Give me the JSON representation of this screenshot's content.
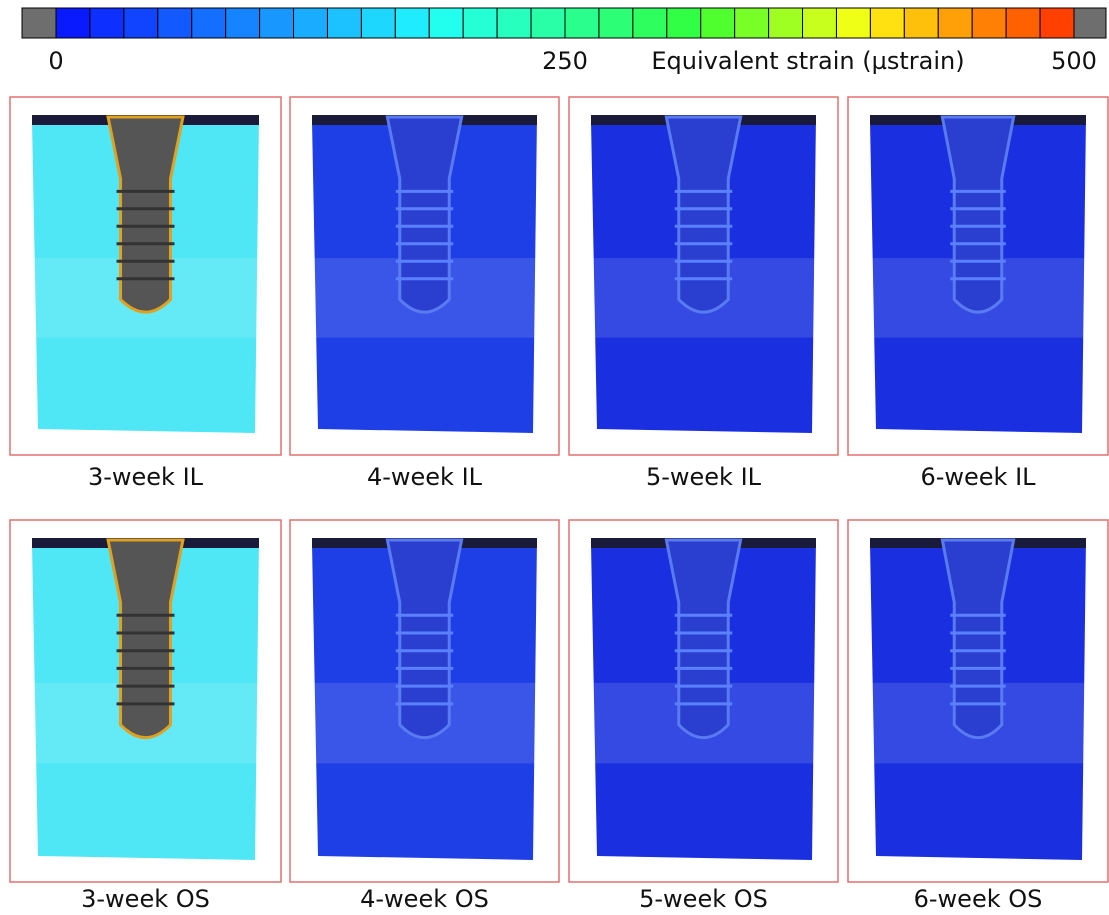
{
  "colorbar": {
    "label": "Equivalent strain (µstrain)",
    "lim": [
      0,
      500
    ],
    "ticks": [
      0,
      250,
      500
    ],
    "colors": [
      "#0a1aff",
      "#0d2fff",
      "#1044ff",
      "#1259ff",
      "#146eff",
      "#1683ff",
      "#1898ff",
      "#1aadff",
      "#1cc2ff",
      "#1ed7ff",
      "#20ecff",
      "#22ffee",
      "#24ffd6",
      "#26ffbe",
      "#28ffa6",
      "#2aff8e",
      "#2cff76",
      "#2eff5e",
      "#30ff46",
      "#50ff2e",
      "#78ff28",
      "#a0ff22",
      "#c8ff1c",
      "#f0ff16",
      "#ffe010",
      "#ffc00c",
      "#ffa008",
      "#ff8004",
      "#ff6000",
      "#ff4000"
    ],
    "out_of_range_color": "#6e6e6e"
  },
  "panels": [
    {
      "label": "3-week IL",
      "color": "#4fe6f5"
    },
    {
      "label": "4-week IL",
      "color": "#1f3fe6"
    },
    {
      "label": "5-week IL",
      "color": "#1a30e0"
    },
    {
      "label": "6-week IL",
      "color": "#1a30e0"
    },
    {
      "label": "3-week OS",
      "color": "#4fe6f5"
    },
    {
      "label": "4-week OS",
      "color": "#1f3fe6"
    },
    {
      "label": "5-week OS",
      "color": "#1a30e0"
    },
    {
      "label": "6-week OS",
      "color": "#1a30e0"
    }
  ]
}
